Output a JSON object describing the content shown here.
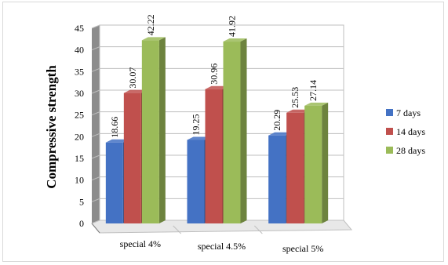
{
  "chart_data": {
    "type": "bar",
    "ylabel": "Compressive strength",
    "xlabel": "",
    "ylim": [
      0,
      45
    ],
    "yticks": [
      0,
      5,
      10,
      15,
      20,
      25,
      30,
      35,
      40,
      45
    ],
    "categories": [
      "special 4%",
      "special 4.5%",
      "special 5%"
    ],
    "series": [
      {
        "name": "7 days",
        "color": "#4472c4",
        "values": [
          18.66,
          19.25,
          20.29
        ],
        "labels": [
          "18.66",
          "19.25",
          "20.29"
        ]
      },
      {
        "name": "14 days",
        "color": "#c0504d",
        "values": [
          30.07,
          30.96,
          25.53
        ],
        "labels": [
          "30.07",
          "30.96",
          "25.53"
        ]
      },
      {
        "name": "28 days",
        "color": "#9bbb59",
        "values": [
          42.22,
          41.92,
          27.14
        ],
        "labels": [
          "42.22",
          "41.92",
          "27.14"
        ]
      }
    ],
    "grid": true,
    "legend_position": "right"
  }
}
